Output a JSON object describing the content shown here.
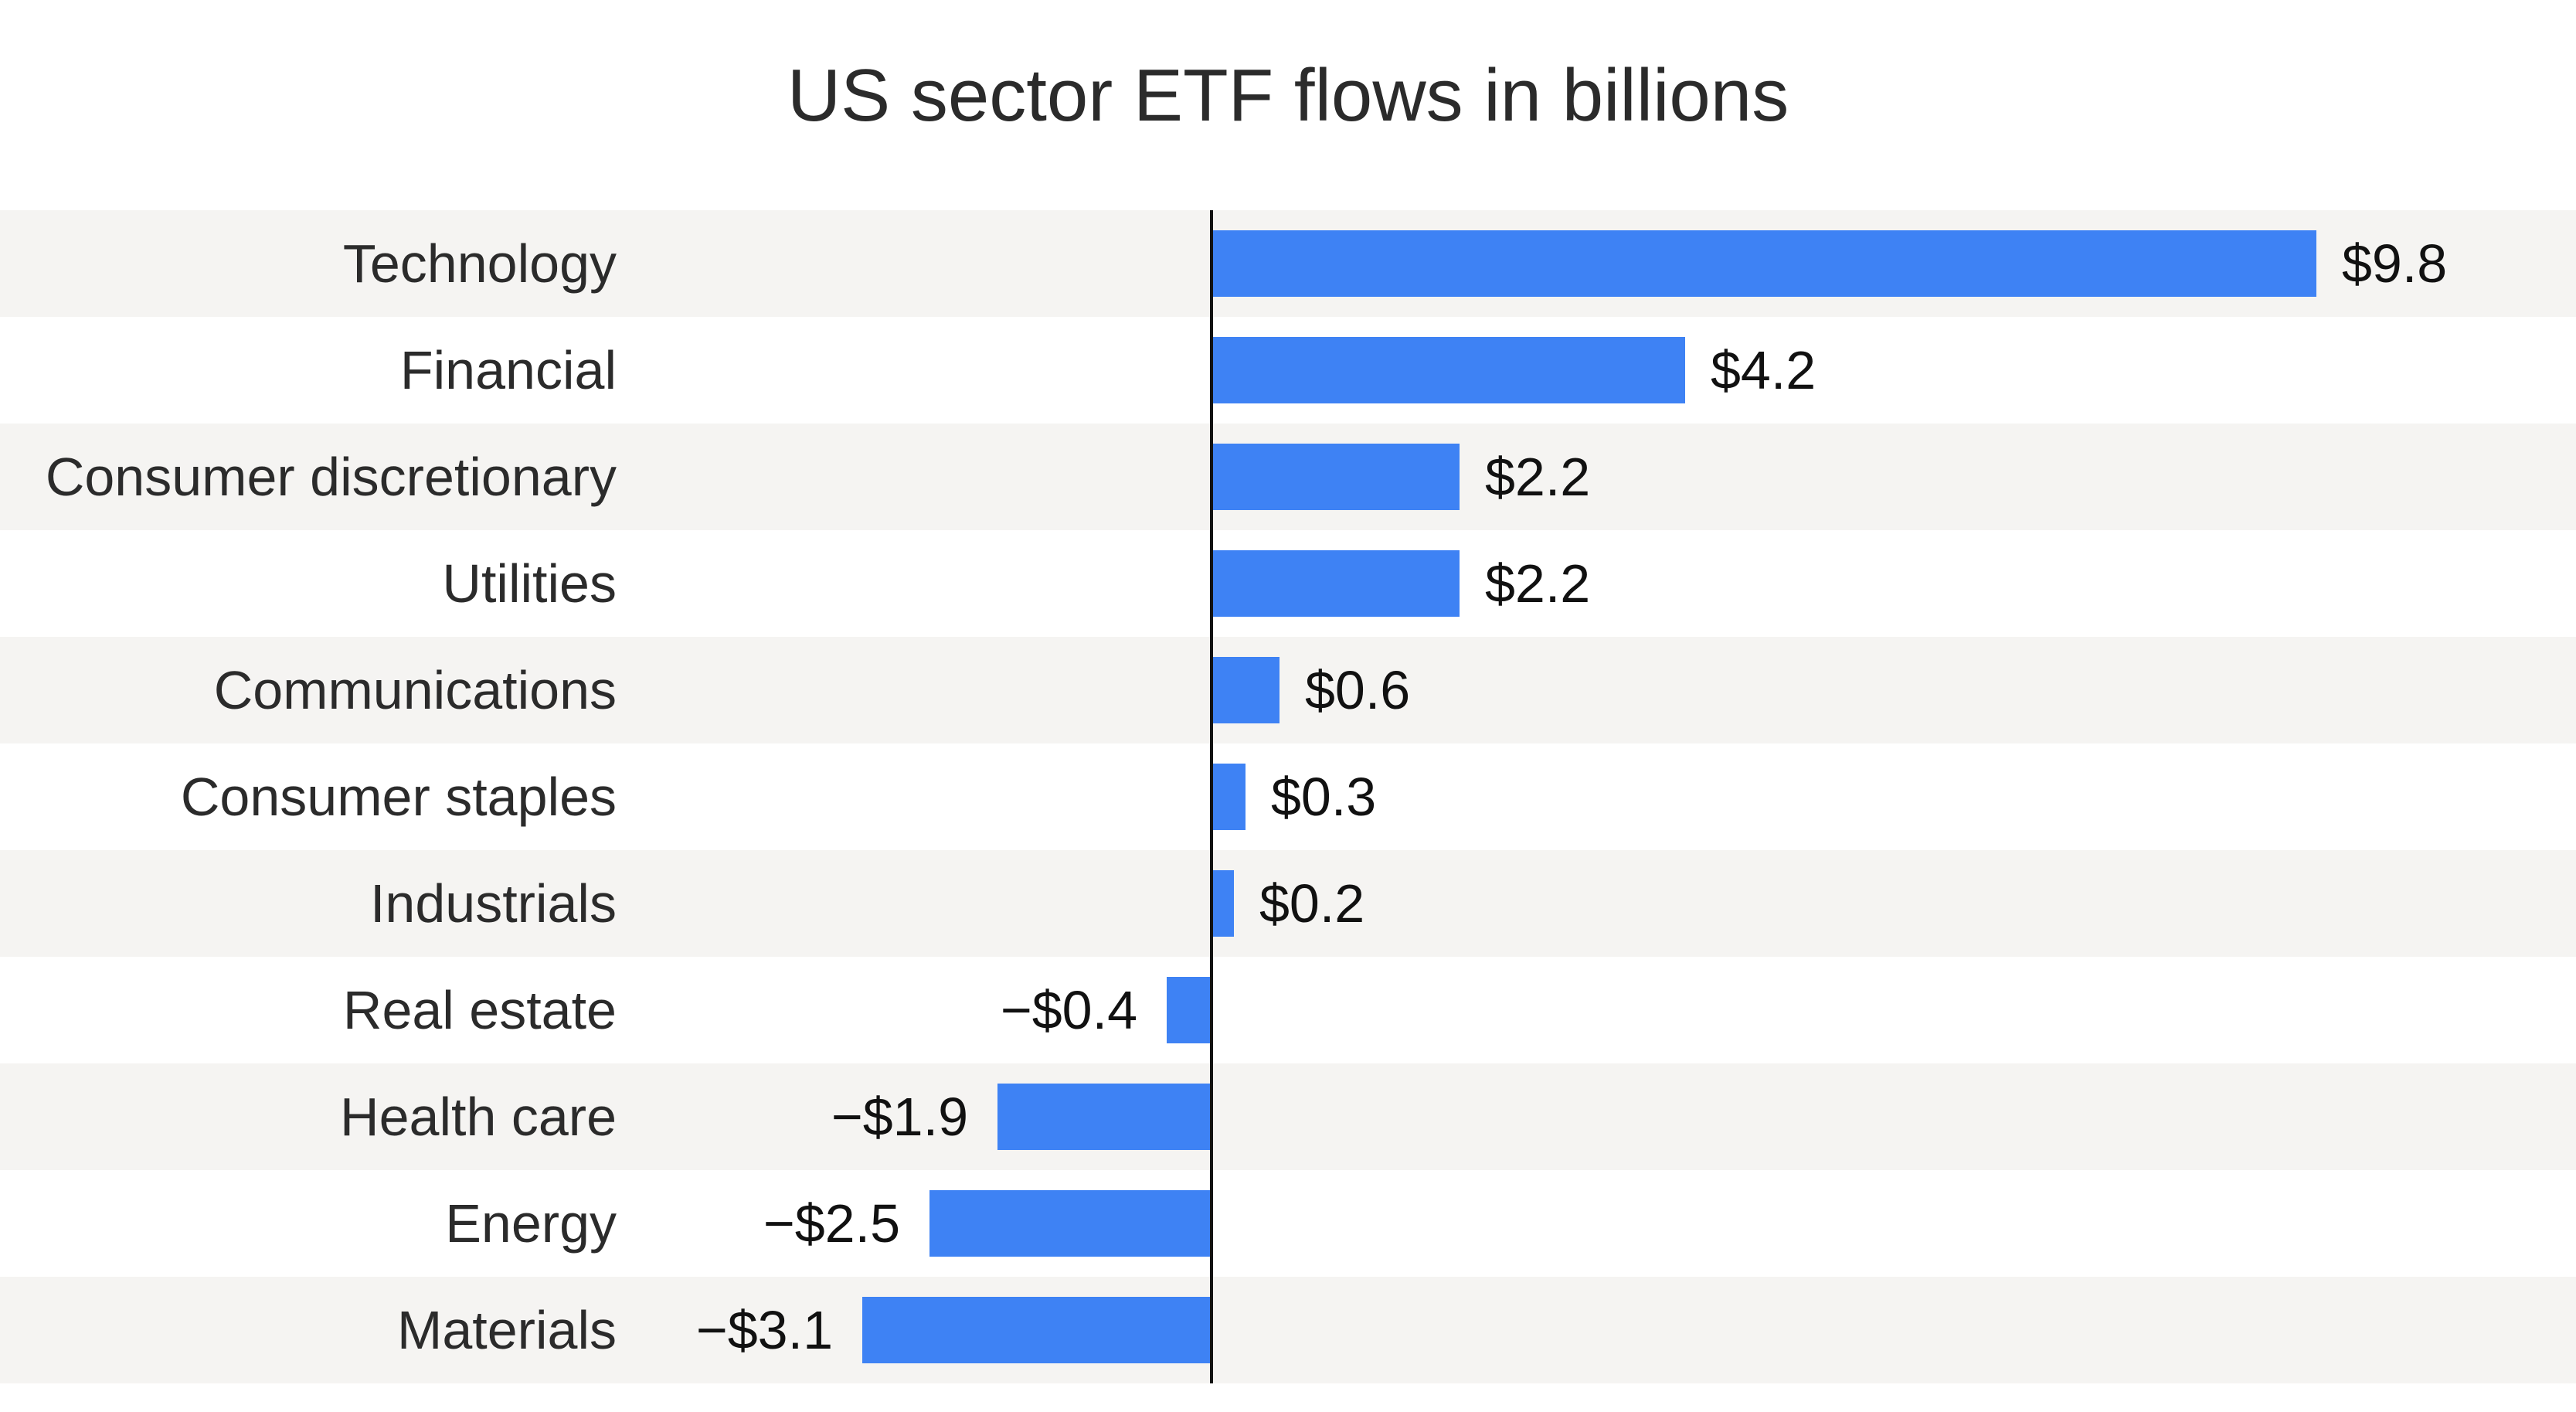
{
  "title": "US sector ETF flows in billions",
  "colors": {
    "bar": "#3e82f4",
    "row_stripe": "#f5f4f2",
    "row_plain": "#ffffff",
    "zero_axis": "#121212",
    "title_text": "#2b2b2b",
    "label_text": "#2b2b2b",
    "value_text": "#111111"
  },
  "chart_data": {
    "type": "bar",
    "orientation": "horizontal",
    "title": "US sector ETF flows in billions",
    "unit": "US$ billions",
    "categories": [
      "Technology",
      "Financial",
      "Consumer discretionary",
      "Utilities",
      "Communications",
      "Consumer staples",
      "Industrials",
      "Real estate",
      "Health care",
      "Energy",
      "Materials"
    ],
    "values": [
      9.8,
      4.2,
      2.2,
      2.2,
      0.6,
      0.3,
      0.2,
      -0.4,
      -1.9,
      -2.5,
      -3.1
    ],
    "value_labels": [
      "$9.8",
      "$4.2",
      "$2.2",
      "$2.2",
      "$0.6",
      "$0.3",
      "$0.2",
      "−$0.4",
      "−$1.9",
      "−$2.5",
      "−$3.1"
    ],
    "xlim": [
      -10.75,
      12.11
    ],
    "zero_line": true,
    "grid": false,
    "legend": "none",
    "row_striping": "alternating, first row shaded",
    "bar_labels_position": "outside end of each bar"
  }
}
